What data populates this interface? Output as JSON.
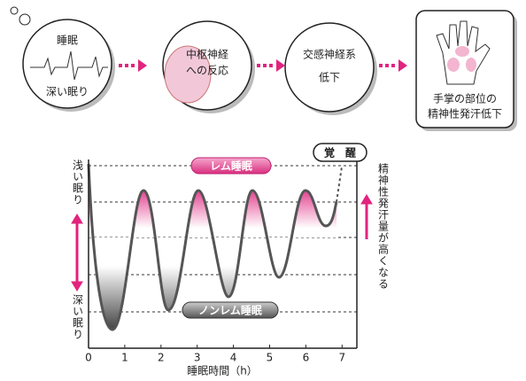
{
  "flow": {
    "steps": [
      {
        "lines": [
          "睡眠",
          "深い眠り"
        ]
      },
      {
        "lines": [
          "中枢神経",
          "への反応"
        ]
      },
      {
        "lines": [
          "交感神経系",
          "低下"
        ]
      },
      {
        "lines": [
          "手掌の部位の",
          "精神性発汗低下"
        ]
      }
    ]
  },
  "graph": {
    "y_top_label": "浅い眠り",
    "y_bottom_label": "深い眠り",
    "rem_label": "レム睡眠",
    "nrem_label": "ノンレム睡眠",
    "wake_label": "覚　醒",
    "side_label": "精神性発汗量が高くなる",
    "x_label": "睡眠時間（h）",
    "xlim": [
      0,
      7.5
    ],
    "xticks": [
      0,
      1,
      2,
      3,
      4,
      5,
      6,
      7
    ]
  }
}
